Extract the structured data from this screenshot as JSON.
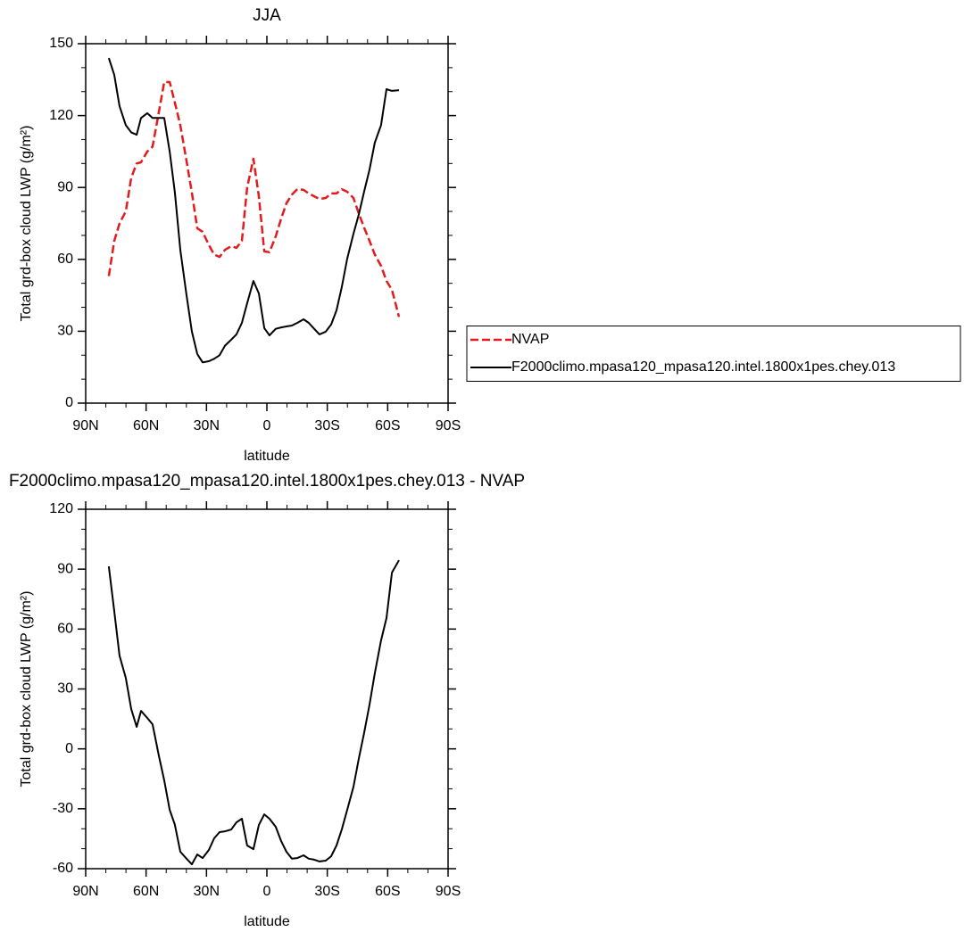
{
  "chart_data": [
    {
      "type": "line",
      "title": "JJA",
      "xlabel": "latitude",
      "ylabel": "Total grd-box cloud LWP (g/m²)",
      "xlim": [
        90,
        -90
      ],
      "xticks": [
        {
          "value": 90,
          "label": "90N"
        },
        {
          "value": 60,
          "label": "60N"
        },
        {
          "value": 30,
          "label": "30N"
        },
        0,
        {
          "value": -30,
          "label": "30S"
        },
        {
          "value": -60,
          "label": "60S"
        },
        {
          "value": -90,
          "label": "90S"
        }
      ],
      "ylim": [
        0,
        150
      ],
      "yticks": [
        0,
        30,
        60,
        90,
        120,
        150
      ],
      "legend": "right",
      "x": [
        78.5,
        75.8,
        73.2,
        70.1,
        67.4,
        64.7,
        62.5,
        59.4,
        56.8,
        53.6,
        51.0,
        48.3,
        45.7,
        43.0,
        39.9,
        37.3,
        34.6,
        31.9,
        28.8,
        26.2,
        23.5,
        20.8,
        17.7,
        15.1,
        12.4,
        9.8,
        6.7,
        4.0,
        1.3,
        -1.3,
        -4.4,
        -7.1,
        -9.7,
        -12.4,
        -15.1,
        -18.2,
        -20.8,
        -23.5,
        -26.1,
        -29.2,
        -31.9,
        -34.6,
        -37.2,
        -39.9,
        -43.0,
        -45.7,
        -48.3,
        -51.0,
        -53.6,
        -56.7,
        -59.4,
        -62.1,
        -65.6
      ],
      "series": [
        {
          "name": "NVAP",
          "color": "#e41a1c",
          "dash": true,
          "values": [
            53,
            67.7,
            75,
            80,
            94,
            100,
            100.5,
            105,
            107,
            121.7,
            134,
            134,
            125.4,
            116,
            101,
            88,
            73,
            71.5,
            66,
            62,
            61,
            64,
            65.5,
            64.8,
            67.7,
            90,
            102,
            86.3,
            63.3,
            63,
            69.6,
            77,
            83.4,
            87,
            89.3,
            89,
            87.5,
            86.3,
            85.2,
            85.6,
            87.5,
            87.5,
            89.3,
            88.2,
            85.6,
            79,
            73.3,
            67.7,
            62,
            57.3,
            51,
            47.3,
            36
          ]
        },
        {
          "name": "F2000climo.mpasa120_mpasa120.intel.1800x1pes.chey.013",
          "color": "#000000",
          "dash": false,
          "values": [
            144,
            137,
            124,
            116,
            113,
            112,
            119,
            121,
            119,
            119,
            119,
            105,
            88,
            64,
            45,
            30,
            20.5,
            17,
            17.5,
            18.5,
            20,
            24,
            26.5,
            28.7,
            33.5,
            41.7,
            51,
            45.8,
            31.3,
            28.3,
            31,
            31.6,
            32,
            32.4,
            33.5,
            35,
            33.5,
            31,
            28.7,
            29.8,
            32.8,
            38.7,
            48.4,
            60.3,
            70.7,
            78.9,
            88.2,
            97.5,
            108.7,
            116,
            131,
            130.3,
            130.6
          ]
        }
      ]
    },
    {
      "type": "line",
      "title": "F2000climo.mpasa120_mpasa120.intel.1800x1pes.chey.013 - NVAP",
      "xlabel": "latitude",
      "ylabel": "Total grd-box cloud LWP (g/m²)",
      "xlim": [
        90,
        -90
      ],
      "xticks": [
        {
          "value": 90,
          "label": "90N"
        },
        {
          "value": 60,
          "label": "60N"
        },
        {
          "value": 30,
          "label": "30N"
        },
        0,
        {
          "value": -30,
          "label": "30S"
        },
        {
          "value": -60,
          "label": "60S"
        },
        {
          "value": -90,
          "label": "90S"
        }
      ],
      "ylim": [
        -60,
        120
      ],
      "yticks": [
        -60,
        -30,
        0,
        30,
        60,
        90,
        120
      ],
      "x": [
        78.5,
        75.8,
        73.2,
        70.1,
        67.4,
        64.7,
        62.5,
        59.4,
        56.8,
        53.6,
        51.0,
        48.3,
        45.7,
        43.0,
        39.9,
        37.3,
        34.6,
        31.9,
        28.8,
        26.2,
        23.5,
        20.8,
        17.7,
        15.1,
        12.4,
        9.8,
        6.7,
        4.0,
        1.3,
        -1.3,
        -4.4,
        -7.1,
        -9.7,
        -12.4,
        -15.1,
        -18.2,
        -20.8,
        -23.5,
        -26.1,
        -29.2,
        -31.9,
        -34.6,
        -37.2,
        -39.9,
        -43.0,
        -45.7,
        -48.3,
        -51.0,
        -53.6,
        -56.7,
        -59.4,
        -62.1,
        -65.6
      ],
      "series": [
        {
          "color": "#000000",
          "dash": false,
          "values": [
            91.4,
            69,
            46.7,
            35.6,
            20,
            11,
            19,
            15.5,
            12.3,
            -3.7,
            -15.8,
            -30.5,
            -38,
            -51.5,
            -55,
            -57.8,
            -52.9,
            -54.7,
            -50.6,
            -44.8,
            -41.7,
            -41.3,
            -40.4,
            -36.8,
            -35,
            -48.4,
            -50.2,
            -38.1,
            -32.8,
            -35,
            -39,
            -46.2,
            -51.5,
            -55,
            -54.7,
            -53.3,
            -55,
            -55.5,
            -56.4,
            -56,
            -53.8,
            -48.4,
            -40.4,
            -30.5,
            -19,
            -4.6,
            7.9,
            22.2,
            37.8,
            54.3,
            65.5,
            88.3,
            94.5
          ]
        }
      ]
    }
  ]
}
